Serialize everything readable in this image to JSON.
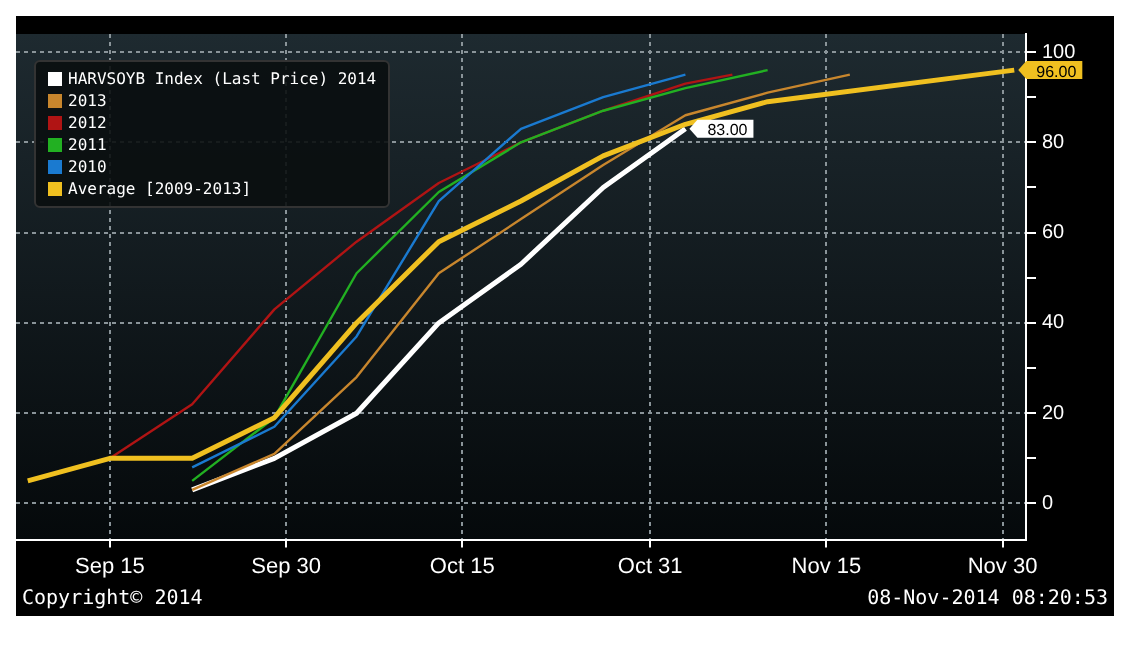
{
  "chart_data": {
    "type": "line",
    "x": [
      "--09-08",
      "--09-15",
      "--09-22",
      "--09-29",
      "--10-06",
      "--10-13",
      "--10-20",
      "--10-27",
      "--11-03",
      "--11-10",
      "--12-01"
    ],
    "series": [
      {
        "name": "HARVSOYB Index (Last Price) 2014",
        "color": "#ffffff",
        "x": [
          "--09-22",
          "--09-29",
          "--10-06",
          "--10-13",
          "--10-20",
          "--10-27",
          "--11-03"
        ],
        "values": [
          3,
          10,
          20,
          40,
          53,
          70,
          83
        ],
        "value_labels": [
          null,
          null,
          null,
          null,
          null,
          null,
          "83.00"
        ]
      },
      {
        "name": "2013",
        "color": "#c8862d",
        "x": [
          "--09-22",
          "--09-29",
          "--10-06",
          "--10-13",
          "--10-20",
          "--10-27",
          "--11-03",
          "--11-10",
          "--11-17"
        ],
        "values": [
          3,
          11,
          28,
          51,
          63,
          75,
          86,
          91,
          95
        ]
      },
      {
        "name": "2012",
        "color": "#b01414",
        "x": [
          "--09-15",
          "--09-22",
          "--09-29",
          "--10-06",
          "--10-13",
          "--10-20",
          "--10-27",
          "--11-03",
          "--11-07"
        ],
        "values": [
          10,
          22,
          43,
          58,
          71,
          80,
          87,
          93,
          95
        ]
      },
      {
        "name": "2011",
        "color": "#22b022",
        "x": [
          "--09-22",
          "--09-29",
          "--10-06",
          "--10-13",
          "--10-20",
          "--10-27",
          "--11-03",
          "--11-10"
        ],
        "values": [
          5,
          19,
          51,
          69,
          80,
          87,
          92,
          96
        ]
      },
      {
        "name": "2010",
        "color": "#1a7ad0",
        "x": [
          "--09-22",
          "--09-29",
          "--10-06",
          "--10-13",
          "--10-20",
          "--10-27",
          "--11-03"
        ],
        "values": [
          8,
          17,
          37,
          67,
          83,
          90,
          95
        ]
      },
      {
        "name": "Average [2009-2013]",
        "color": "#f0c020",
        "values": [
          5,
          10,
          10,
          19,
          40,
          58,
          67,
          77,
          84,
          89,
          96
        ],
        "value_labels": [
          null,
          null,
          null,
          null,
          null,
          null,
          null,
          null,
          null,
          null,
          "96.00"
        ]
      }
    ],
    "xlim": [
      "--09-07",
      "--12-02"
    ],
    "xticks": [
      {
        "value": "--09-15",
        "label": "Sep 15"
      },
      {
        "value": "--09-30",
        "label": "Sep 30"
      },
      {
        "value": "--10-15",
        "label": "Oct 15"
      },
      {
        "value": "--10-31",
        "label": "Oct 31"
      },
      {
        "value": "--11-15",
        "label": "Nov 15"
      },
      {
        "value": "--11-30",
        "label": "Nov 30"
      }
    ],
    "ylim": [
      -8,
      104
    ],
    "yticks": [
      0,
      {
        "value": 10,
        "label": null
      },
      20,
      {
        "value": 30,
        "label": null
      },
      40,
      {
        "value": 50,
        "label": null
      },
      60,
      {
        "value": 70,
        "label": null
      },
      80,
      {
        "value": 90,
        "label": null
      },
      100
    ],
    "grid": true,
    "legend": "top left",
    "marker": "none",
    "line_style": "solid",
    "annotations": [
      "Copyright© 2014",
      "08-Nov-2014 08:20:53"
    ]
  }
}
